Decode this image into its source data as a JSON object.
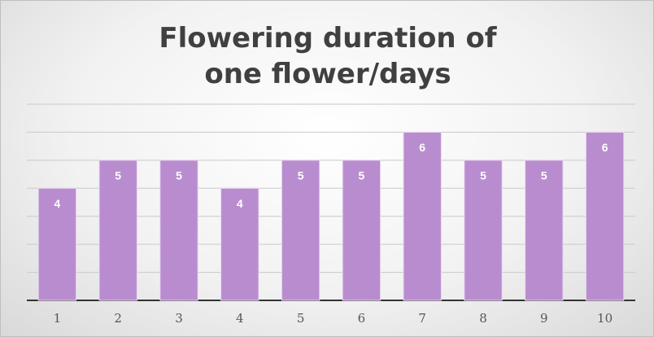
{
  "chart_data": {
    "type": "bar",
    "title": "Flowering duration of one flower/days",
    "categories": [
      "1",
      "2",
      "3",
      "4",
      "5",
      "6",
      "7",
      "8",
      "9",
      "10"
    ],
    "values": [
      4,
      5,
      5,
      4,
      5,
      5,
      6,
      5,
      5,
      6
    ],
    "color": "#b98ccf",
    "ylim": [
      0,
      7
    ],
    "yticks": [
      0,
      1,
      2,
      3,
      4,
      5,
      6,
      7
    ],
    "grid": true
  }
}
